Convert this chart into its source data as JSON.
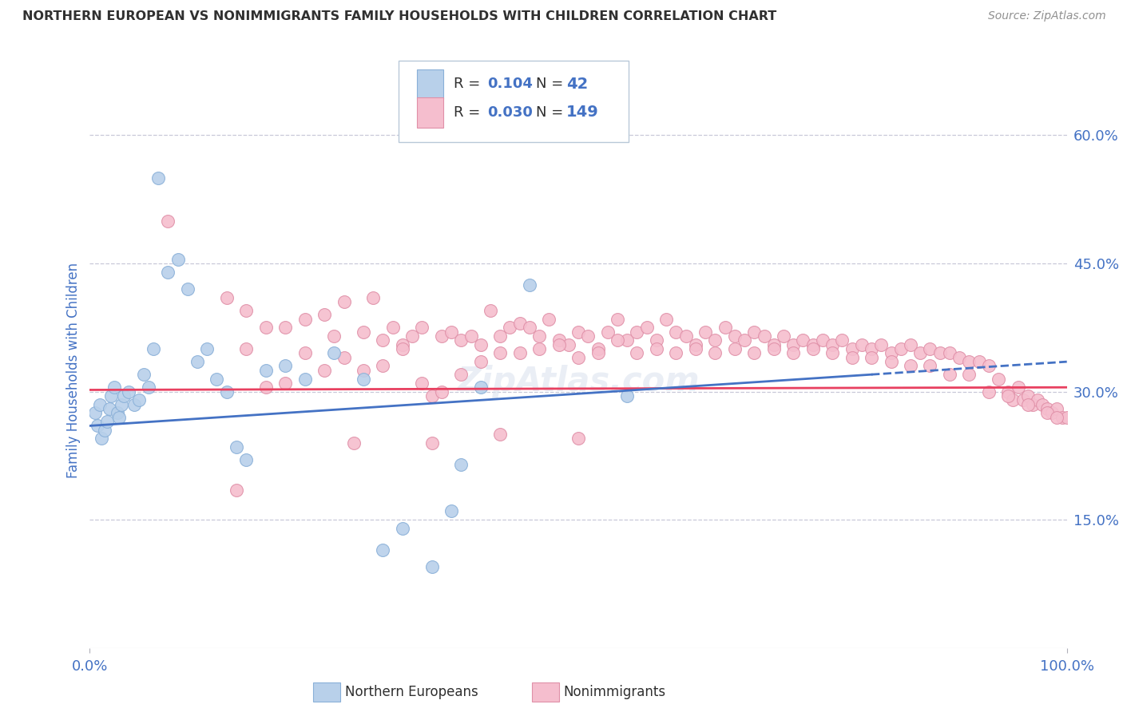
{
  "title": "NORTHERN EUROPEAN VS NONIMMIGRANTS FAMILY HOUSEHOLDS WITH CHILDREN CORRELATION CHART",
  "source": "Source: ZipAtlas.com",
  "ylabel": "Family Households with Children",
  "xlim": [
    0,
    100
  ],
  "ylim": [
    0,
    65
  ],
  "ytick_vals": [
    15,
    30,
    45,
    60
  ],
  "ytick_labels": [
    "15.0%",
    "30.0%",
    "45.0%",
    "60.0%"
  ],
  "xtick_vals": [
    0,
    100
  ],
  "xtick_labels": [
    "0.0%",
    "100.0%"
  ],
  "blue_color": "#b8d0ea",
  "blue_edge_color": "#8ab0d8",
  "pink_color": "#f5bece",
  "pink_edge_color": "#e090a8",
  "blue_line_color": "#4472c4",
  "pink_line_color": "#e84060",
  "title_color": "#303030",
  "source_color": "#909090",
  "axis_label_color": "#4472c4",
  "tick_color": "#4472c4",
  "background_color": "#ffffff",
  "grid_color": "#c8c8d8",
  "legend_text_color": "#303030",
  "legend_value_color": "#4472c4",
  "blue_trend_x": [
    0,
    100
  ],
  "blue_trend_y": [
    26.0,
    33.5
  ],
  "pink_trend_x": [
    0,
    100
  ],
  "pink_trend_y": [
    30.2,
    30.5
  ],
  "blue_scatter": [
    [
      0.5,
      27.5
    ],
    [
      0.8,
      26.0
    ],
    [
      1.0,
      28.5
    ],
    [
      1.2,
      24.5
    ],
    [
      1.5,
      25.5
    ],
    [
      1.8,
      26.5
    ],
    [
      2.0,
      28.0
    ],
    [
      2.2,
      29.5
    ],
    [
      2.5,
      30.5
    ],
    [
      2.8,
      27.5
    ],
    [
      3.0,
      27.0
    ],
    [
      3.2,
      28.5
    ],
    [
      3.5,
      29.5
    ],
    [
      4.0,
      30.0
    ],
    [
      4.5,
      28.5
    ],
    [
      5.0,
      29.0
    ],
    [
      5.5,
      32.0
    ],
    [
      6.0,
      30.5
    ],
    [
      6.5,
      35.0
    ],
    [
      7.0,
      55.0
    ],
    [
      8.0,
      44.0
    ],
    [
      9.0,
      45.5
    ],
    [
      10.0,
      42.0
    ],
    [
      11.0,
      33.5
    ],
    [
      12.0,
      35.0
    ],
    [
      13.0,
      31.5
    ],
    [
      14.0,
      30.0
    ],
    [
      15.0,
      23.5
    ],
    [
      16.0,
      22.0
    ],
    [
      18.0,
      32.5
    ],
    [
      20.0,
      33.0
    ],
    [
      22.0,
      31.5
    ],
    [
      25.0,
      34.5
    ],
    [
      28.0,
      31.5
    ],
    [
      30.0,
      11.5
    ],
    [
      32.0,
      14.0
    ],
    [
      35.0,
      9.5
    ],
    [
      37.0,
      16.0
    ],
    [
      38.0,
      21.5
    ],
    [
      40.0,
      30.5
    ],
    [
      45.0,
      42.5
    ],
    [
      55.0,
      29.5
    ]
  ],
  "pink_scatter": [
    [
      8.0,
      50.0
    ],
    [
      14.0,
      41.0
    ],
    [
      16.0,
      39.5
    ],
    [
      18.0,
      37.5
    ],
    [
      20.0,
      37.5
    ],
    [
      22.0,
      38.5
    ],
    [
      24.0,
      39.0
    ],
    [
      25.0,
      36.5
    ],
    [
      26.0,
      40.5
    ],
    [
      28.0,
      37.0
    ],
    [
      29.0,
      41.0
    ],
    [
      30.0,
      36.0
    ],
    [
      31.0,
      37.5
    ],
    [
      32.0,
      35.5
    ],
    [
      33.0,
      36.5
    ],
    [
      34.0,
      37.5
    ],
    [
      35.0,
      29.5
    ],
    [
      36.0,
      36.5
    ],
    [
      37.0,
      37.0
    ],
    [
      38.0,
      36.0
    ],
    [
      39.0,
      36.5
    ],
    [
      40.0,
      35.5
    ],
    [
      41.0,
      39.5
    ],
    [
      42.0,
      36.5
    ],
    [
      43.0,
      37.5
    ],
    [
      44.0,
      38.0
    ],
    [
      45.0,
      37.5
    ],
    [
      46.0,
      36.5
    ],
    [
      47.0,
      38.5
    ],
    [
      48.0,
      36.0
    ],
    [
      49.0,
      35.5
    ],
    [
      50.0,
      37.0
    ],
    [
      51.0,
      36.5
    ],
    [
      52.0,
      35.0
    ],
    [
      53.0,
      37.0
    ],
    [
      54.0,
      38.5
    ],
    [
      55.0,
      36.0
    ],
    [
      56.0,
      37.0
    ],
    [
      57.0,
      37.5
    ],
    [
      58.0,
      36.0
    ],
    [
      59.0,
      38.5
    ],
    [
      60.0,
      37.0
    ],
    [
      61.0,
      36.5
    ],
    [
      62.0,
      35.5
    ],
    [
      63.0,
      37.0
    ],
    [
      64.0,
      36.0
    ],
    [
      65.0,
      37.5
    ],
    [
      66.0,
      36.5
    ],
    [
      67.0,
      36.0
    ],
    [
      68.0,
      37.0
    ],
    [
      69.0,
      36.5
    ],
    [
      70.0,
      35.5
    ],
    [
      71.0,
      36.5
    ],
    [
      72.0,
      35.5
    ],
    [
      73.0,
      36.0
    ],
    [
      74.0,
      35.5
    ],
    [
      75.0,
      36.0
    ],
    [
      76.0,
      35.5
    ],
    [
      77.0,
      36.0
    ],
    [
      78.0,
      35.0
    ],
    [
      79.0,
      35.5
    ],
    [
      80.0,
      35.0
    ],
    [
      81.0,
      35.5
    ],
    [
      82.0,
      34.5
    ],
    [
      83.0,
      35.0
    ],
    [
      84.0,
      35.5
    ],
    [
      85.0,
      34.5
    ],
    [
      86.0,
      35.0
    ],
    [
      87.0,
      34.5
    ],
    [
      88.0,
      34.5
    ],
    [
      89.0,
      34.0
    ],
    [
      90.0,
      33.5
    ],
    [
      91.0,
      33.5
    ],
    [
      92.0,
      33.0
    ],
    [
      93.0,
      31.5
    ],
    [
      94.0,
      30.0
    ],
    [
      94.5,
      29.0
    ],
    [
      95.0,
      30.5
    ],
    [
      95.5,
      29.0
    ],
    [
      96.0,
      29.5
    ],
    [
      96.5,
      28.5
    ],
    [
      97.0,
      29.0
    ],
    [
      97.5,
      28.5
    ],
    [
      98.0,
      28.0
    ],
    [
      98.5,
      27.5
    ],
    [
      99.0,
      28.0
    ],
    [
      99.5,
      27.0
    ],
    [
      100.0,
      27.0
    ],
    [
      16.0,
      35.0
    ],
    [
      18.0,
      30.5
    ],
    [
      20.0,
      31.0
    ],
    [
      22.0,
      34.5
    ],
    [
      24.0,
      32.5
    ],
    [
      26.0,
      34.0
    ],
    [
      28.0,
      32.5
    ],
    [
      30.0,
      33.0
    ],
    [
      32.0,
      35.0
    ],
    [
      34.0,
      31.0
    ],
    [
      36.0,
      30.0
    ],
    [
      38.0,
      32.0
    ],
    [
      40.0,
      33.5
    ],
    [
      42.0,
      34.5
    ],
    [
      44.0,
      34.5
    ],
    [
      46.0,
      35.0
    ],
    [
      48.0,
      35.5
    ],
    [
      50.0,
      34.0
    ],
    [
      52.0,
      34.5
    ],
    [
      54.0,
      36.0
    ],
    [
      56.0,
      34.5
    ],
    [
      58.0,
      35.0
    ],
    [
      60.0,
      34.5
    ],
    [
      62.0,
      35.0
    ],
    [
      64.0,
      34.5
    ],
    [
      66.0,
      35.0
    ],
    [
      68.0,
      34.5
    ],
    [
      70.0,
      35.0
    ],
    [
      72.0,
      34.5
    ],
    [
      74.0,
      35.0
    ],
    [
      76.0,
      34.5
    ],
    [
      78.0,
      34.0
    ],
    [
      80.0,
      34.0
    ],
    [
      82.0,
      33.5
    ],
    [
      84.0,
      33.0
    ],
    [
      86.0,
      33.0
    ],
    [
      88.0,
      32.0
    ],
    [
      90.0,
      32.0
    ],
    [
      92.0,
      30.0
    ],
    [
      94.0,
      29.5
    ],
    [
      96.0,
      28.5
    ],
    [
      98.0,
      27.5
    ],
    [
      99.0,
      27.0
    ],
    [
      15.0,
      18.5
    ],
    [
      27.0,
      24.0
    ],
    [
      35.0,
      24.0
    ],
    [
      42.0,
      25.0
    ],
    [
      50.0,
      24.5
    ]
  ]
}
